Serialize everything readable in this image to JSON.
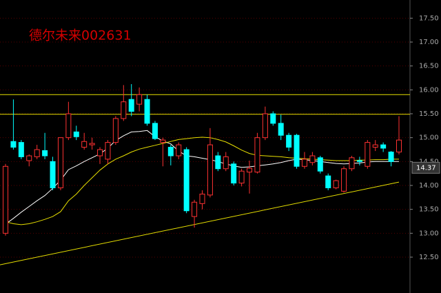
{
  "chart_data": {
    "type": "candlestick",
    "title": "德尔未来002631",
    "open": [
      13.0,
      14.92,
      14.9,
      14.52,
      14.6,
      14.73,
      14.5,
      13.95,
      15.0,
      15.12,
      14.8,
      14.85,
      14.62,
      14.55,
      14.9,
      15.4,
      15.8,
      15.7,
      15.8,
      15.3,
      14.9,
      14.8,
      14.62,
      14.75,
      13.35,
      13.62,
      13.8,
      14.62,
      14.35,
      14.45,
      14.05,
      14.28,
      14.28,
      15.0,
      15.5,
      15.3,
      15.05,
      15.05,
      14.4,
      14.48,
      14.58,
      14.2,
      13.95,
      13.88,
      14.35,
      14.52,
      14.4,
      14.8,
      14.85,
      14.7,
      14.7
    ],
    "high": [
      14.45,
      15.8,
      14.95,
      14.65,
      14.85,
      15.1,
      14.6,
      15.0,
      15.75,
      15.25,
      15.1,
      15.0,
      14.8,
      14.95,
      15.45,
      16.1,
      16.12,
      16.05,
      15.9,
      15.35,
      15.0,
      14.85,
      14.9,
      14.8,
      13.7,
      13.9,
      15.2,
      14.7,
      14.7,
      14.5,
      14.35,
      14.52,
      15.1,
      15.65,
      15.55,
      15.48,
      15.1,
      15.08,
      14.7,
      14.7,
      14.62,
      14.25,
      14.12,
      14.4,
      14.62,
      14.6,
      14.95,
      14.95,
      14.9,
      14.72,
      15.45
    ],
    "low": [
      12.95,
      14.75,
      14.55,
      14.4,
      14.55,
      14.55,
      13.9,
      13.9,
      14.95,
      14.95,
      14.75,
      14.75,
      14.45,
      14.45,
      14.85,
      15.35,
      15.45,
      15.55,
      15.25,
      14.95,
      14.4,
      14.42,
      14.55,
      13.42,
      13.12,
      13.5,
      13.75,
      14.3,
      14.3,
      14.0,
      13.98,
      13.83,
      14.25,
      14.95,
      15.25,
      14.95,
      14.72,
      14.35,
      14.35,
      14.42,
      14.25,
      13.9,
      13.92,
      13.85,
      14.3,
      14.42,
      14.35,
      14.72,
      14.7,
      14.4,
      14.65
    ],
    "close": [
      14.4,
      14.8,
      14.6,
      14.62,
      14.75,
      14.62,
      13.95,
      15.0,
      15.5,
      15.02,
      14.92,
      14.88,
      14.75,
      14.9,
      15.4,
      15.75,
      15.55,
      15.9,
      15.3,
      14.98,
      14.95,
      14.62,
      14.85,
      13.47,
      13.65,
      13.82,
      14.85,
      14.35,
      14.6,
      14.05,
      14.3,
      14.36,
      15.0,
      15.5,
      15.3,
      15.05,
      14.8,
      14.4,
      14.55,
      14.62,
      14.3,
      13.95,
      14.1,
      14.35,
      14.58,
      14.5,
      14.9,
      14.85,
      14.78,
      14.5,
      14.95
    ],
    "up_color": "#ff3232",
    "down_color": "#00ffff",
    "series": [
      {
        "color": "#ffffff",
        "values": [
          13.19,
          13.31,
          13.44,
          13.56,
          13.68,
          13.79,
          13.94,
          14.11,
          14.33,
          14.41,
          14.5,
          14.58,
          14.66,
          14.78,
          14.94,
          15.04,
          15.12,
          15.13,
          15.15,
          15.02,
          14.93,
          14.87,
          14.72,
          14.62,
          14.6,
          14.57,
          14.54,
          14.5,
          14.45,
          14.41,
          14.38,
          14.39,
          14.41,
          14.43,
          14.45,
          14.48,
          14.52,
          14.55,
          14.54,
          14.52,
          14.5,
          14.48,
          14.46,
          14.45,
          14.46,
          14.47,
          14.49,
          14.5,
          14.5,
          14.5,
          14.5
        ]
      },
      {
        "color": "#e8e000",
        "values": [
          13.24,
          13.2,
          13.18,
          13.2,
          13.24,
          13.29,
          13.35,
          13.45,
          13.68,
          13.82,
          14.0,
          14.16,
          14.32,
          14.45,
          14.55,
          14.62,
          14.7,
          14.76,
          14.8,
          14.84,
          14.88,
          14.92,
          14.96,
          14.98,
          15.0,
          15.01,
          15.0,
          14.96,
          14.91,
          14.83,
          14.74,
          14.67,
          14.63,
          14.62,
          14.61,
          14.6,
          14.58,
          14.57,
          14.56,
          14.55,
          14.54,
          14.53,
          14.52,
          14.52,
          14.52,
          14.53,
          14.53,
          14.54,
          14.54,
          14.55,
          14.55
        ]
      }
    ],
    "hlines": [
      15.9,
      15.49
    ],
    "hline_color": "#e8e000",
    "trendline": {
      "start": 12.34,
      "end": 14.07,
      "color": "#e8e000"
    },
    "last_price": 14.37,
    "ylim": [
      11.75,
      17.88
    ],
    "yticks": [
      {
        "value": 12.5,
        "label": "12.50"
      },
      {
        "value": 13,
        "label": "13.00"
      },
      {
        "value": 13.5,
        "label": "13.50"
      },
      {
        "value": 14,
        "label": "14.00"
      },
      {
        "value": 14.5,
        "label": "14.50"
      },
      {
        "value": 15,
        "label": "15.00"
      },
      {
        "value": 15.5,
        "label": "15.50"
      },
      {
        "value": 16,
        "label": "16.00"
      },
      {
        "value": 16.5,
        "label": "16.50"
      },
      {
        "value": 17,
        "label": "17.00"
      },
      {
        "value": 17.5,
        "label": "17.50"
      }
    ],
    "grid": true
  }
}
